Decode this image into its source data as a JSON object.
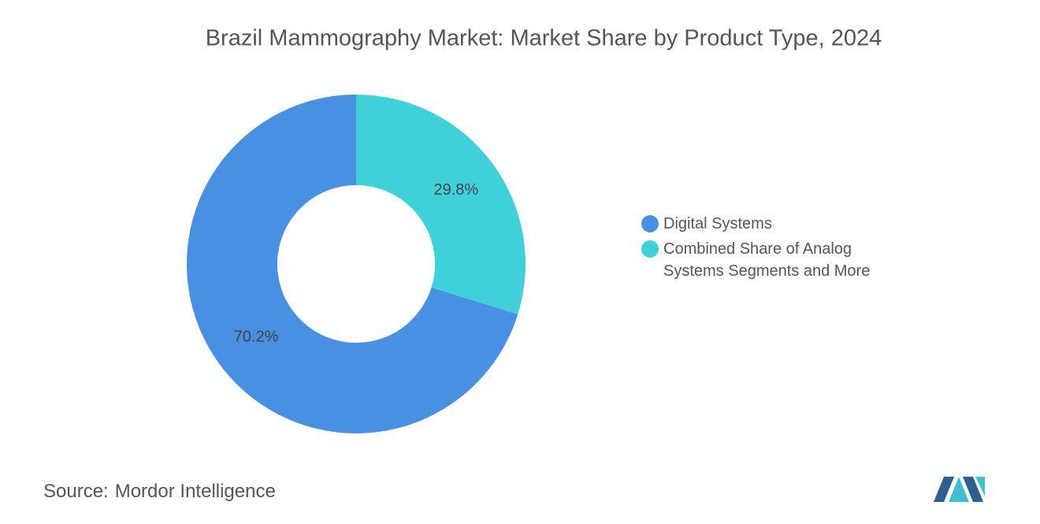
{
  "chart_data": {
    "type": "donut",
    "title": "Brazil Mammography Market: Market Share by Product Type, 2024",
    "categories": [
      "Digital Systems",
      "Combined Share of Analog Systems Segments and More"
    ],
    "values": [
      70.2,
      29.8
    ],
    "value_labels": [
      "70.2%",
      "29.8%"
    ],
    "colors": [
      "#4a90e2",
      "#40d0da"
    ],
    "source_label": "Source:",
    "source": "Mordor Intelligence"
  }
}
